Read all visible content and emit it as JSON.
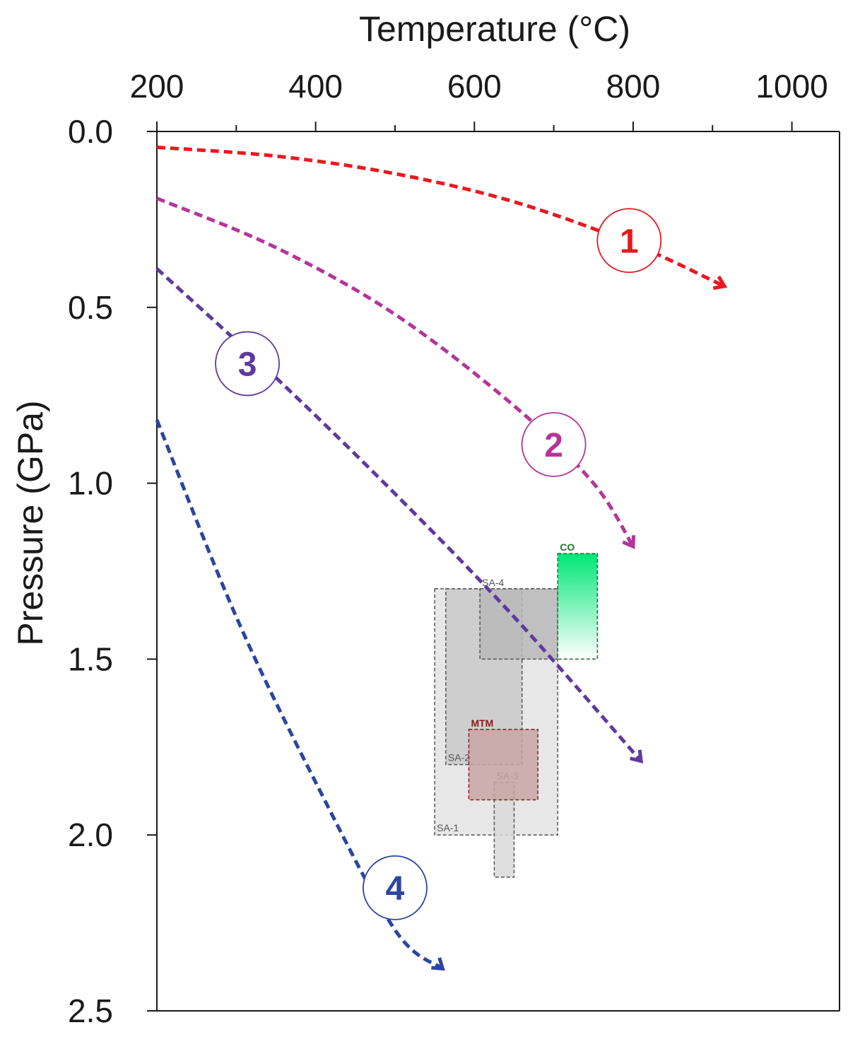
{
  "chart_data": {
    "type": "line",
    "title": "",
    "xlabel": "Temperature (°C)",
    "ylabel": "Pressure (GPa)",
    "xlim": [
      200,
      1060
    ],
    "ylim": [
      0.0,
      2.5
    ],
    "y_inverted": true,
    "x_axis_position": "top",
    "x_ticks": [
      200,
      400,
      600,
      800,
      1000
    ],
    "x_minor_ticks": [
      300,
      500,
      700,
      900
    ],
    "y_ticks": [
      0.0,
      0.5,
      1.0,
      1.5,
      2.0,
      2.5
    ],
    "x_tick_labels": [
      "200",
      "400",
      "600",
      "800",
      "1000"
    ],
    "y_tick_labels": [
      "0.0",
      "0.5",
      "1.0",
      "1.5",
      "2.0",
      "2.5"
    ],
    "grid": false,
    "series": [
      {
        "name": "1",
        "color": "#e8191f",
        "style": "dashed",
        "points": [
          [
            200,
            0.045
          ],
          [
            350,
            0.07
          ],
          [
            500,
            0.12
          ],
          [
            650,
            0.2
          ],
          [
            800,
            0.32
          ],
          [
            915,
            0.44
          ]
        ]
      },
      {
        "name": "2",
        "color": "#b5359a",
        "style": "dashed",
        "points": [
          [
            200,
            0.19
          ],
          [
            350,
            0.33
          ],
          [
            500,
            0.52
          ],
          [
            650,
            0.78
          ],
          [
            750,
            1.0
          ],
          [
            800,
            1.18
          ]
        ]
      },
      {
        "name": "3",
        "color": "#5e3a9e",
        "style": "dashed",
        "points": [
          [
            200,
            0.39
          ],
          [
            350,
            0.7
          ],
          [
            500,
            1.03
          ],
          [
            650,
            1.38
          ],
          [
            810,
            1.79
          ]
        ]
      },
      {
        "name": "4",
        "color": "#2b45a0",
        "style": "dashed",
        "points": [
          [
            200,
            0.82
          ],
          [
            300,
            1.38
          ],
          [
            400,
            1.85
          ],
          [
            500,
            2.27
          ],
          [
            560,
            2.38
          ]
        ]
      }
    ],
    "regions": [
      {
        "label": "SA-1",
        "t": [
          550,
          705
        ],
        "p": [
          1.3,
          2.0
        ],
        "fill": "#e3e3e3",
        "stroke": "#555555",
        "label_color": "#555555",
        "label_pos": "bottom-left"
      },
      {
        "label": "SA-2",
        "t": [
          564,
          660
        ],
        "p": [
          1.3,
          1.8
        ],
        "fill": "#c9c9c9",
        "stroke": "#555555",
        "label_color": "#555555",
        "label_pos": "bottom-left"
      },
      {
        "label": "SA-4",
        "t": [
          607,
          705
        ],
        "p": [
          1.3,
          1.5
        ],
        "fill": "#b8b8b8",
        "stroke": "#555555",
        "label_color": "#555555",
        "label_pos": "top"
      },
      {
        "label": "SA-3",
        "t": [
          625,
          650
        ],
        "p": [
          1.85,
          2.12
        ],
        "fill": "#d9d9d9",
        "stroke": "#555555",
        "label_color": "#555555",
        "label_pos": "top"
      },
      {
        "label": "MTM",
        "t": [
          593,
          680
        ],
        "p": [
          1.7,
          1.9
        ],
        "fill": "#c8a4a4",
        "stroke": "#8b1a1a",
        "label_color": "#8b1a1a",
        "label_pos": "top"
      },
      {
        "label": "CO",
        "t": [
          705,
          755
        ],
        "p": [
          1.2,
          1.5
        ],
        "fill": "gradient-green",
        "stroke": "#1a6b2e",
        "label_color": "#1a7a2e",
        "label_pos": "top"
      }
    ],
    "labels": [
      {
        "text": "1",
        "t": 795,
        "p": 0.31,
        "color": "#e8191f"
      },
      {
        "text": "2",
        "t": 700,
        "p": 0.89,
        "color": "#b5359a"
      },
      {
        "text": "3",
        "t": 314,
        "p": 0.66,
        "color": "#5e3a9e"
      },
      {
        "text": "4",
        "t": 500,
        "p": 2.15,
        "color": "#2b45a0"
      }
    ],
    "legend": "none"
  }
}
